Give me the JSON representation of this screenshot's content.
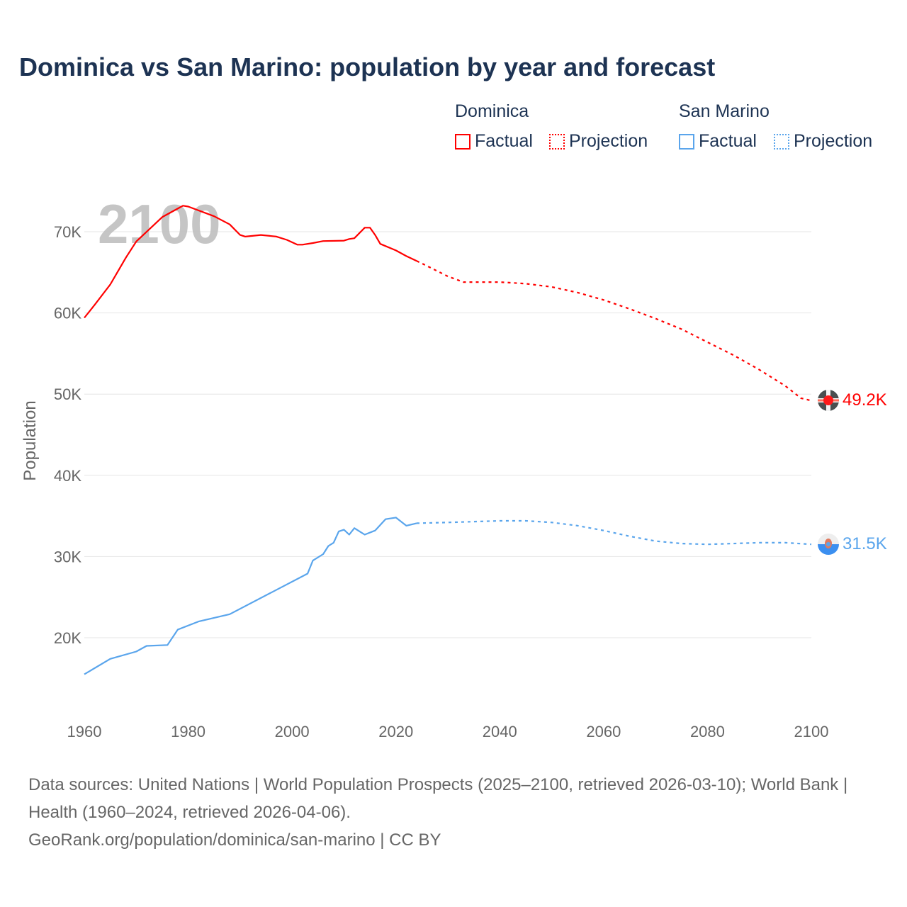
{
  "title": "Dominica vs San Marino: population by year and forecast",
  "legend": {
    "groups": [
      {
        "name": "Dominica",
        "factual": "Factual",
        "projection": "Projection",
        "color": "#ff0000"
      },
      {
        "name": "San Marino",
        "factual": "Factual",
        "projection": "Projection",
        "color": "#5aa5ec"
      }
    ]
  },
  "year_watermark": "2100",
  "end_labels": {
    "dominica": "49.2K",
    "san_marino": "31.5K"
  },
  "footer": {
    "sources": "Data sources: United Nations | World Population Prospects (2025–2100, retrieved 2026-03-10); World Bank | Health (1960–2024, retrieved 2026-04-06).",
    "credit": "GeoRank.org/population/dominica/san-marino | CC BY"
  },
  "chart_data": {
    "type": "line",
    "title": "Dominica vs San Marino: population by year and forecast",
    "xlabel": "",
    "ylabel": "Population",
    "xlim": [
      1960,
      2100
    ],
    "ylim": [
      10400,
      73500
    ],
    "x_ticks": [
      1960,
      1980,
      2000,
      2020,
      2040,
      2060,
      2080,
      2100
    ],
    "x_tick_labels": [
      "1960",
      "1980",
      "2000",
      "2020",
      "2040",
      "2060",
      "2080",
      "2100"
    ],
    "y_ticks": [
      20000,
      30000,
      40000,
      50000,
      60000,
      70000
    ],
    "y_tick_labels": [
      "20K",
      "30K",
      "40K",
      "50K",
      "60K",
      "70K"
    ],
    "grid": true,
    "legend_position": "top-right",
    "series": [
      {
        "name": "Dominica Factual",
        "color": "#ff0000",
        "style": "solid",
        "x": [
          1960,
          1962,
          1965,
          1968,
          1970,
          1975,
          1979,
          1980,
          1985,
          1988,
          1990,
          1991,
          1994,
          1997,
          1999,
          2001,
          2002,
          2004,
          2006,
          2010,
          2011,
          2012,
          2014,
          2015,
          2016,
          2017,
          2020,
          2022,
          2024
        ],
        "y": [
          59400,
          61000,
          63500,
          66800,
          68800,
          71800,
          73200,
          73100,
          71900,
          70900,
          69600,
          69400,
          69600,
          69400,
          69000,
          68400,
          68400,
          68600,
          68850,
          68900,
          69100,
          69200,
          70500,
          70500,
          69600,
          68500,
          67700,
          67000,
          66400
        ]
      },
      {
        "name": "Dominica Projection",
        "color": "#ff0000",
        "style": "dotted",
        "x": [
          2024,
          2025,
          2030,
          2033,
          2040,
          2045,
          2050,
          2055,
          2060,
          2065,
          2070,
          2075,
          2080,
          2085,
          2090,
          2095,
          2098,
          2100
        ],
        "y": [
          66400,
          66100,
          64500,
          63800,
          63800,
          63600,
          63200,
          62500,
          61600,
          60500,
          59300,
          58000,
          56400,
          54800,
          53000,
          51000,
          49500,
          49200
        ]
      },
      {
        "name": "San Marino Factual",
        "color": "#5aa5ec",
        "style": "solid",
        "x": [
          1960,
          1965,
          1970,
          1972,
          1976,
          1978,
          1982,
          1988,
          2003,
          2004,
          2006,
          2007,
          2008,
          2009,
          2010,
          2011,
          2012,
          2014,
          2016,
          2018,
          2020,
          2022,
          2024
        ],
        "y": [
          15500,
          17400,
          18300,
          19000,
          19100,
          21000,
          22000,
          22900,
          27900,
          29500,
          30300,
          31300,
          31700,
          33100,
          33300,
          32700,
          33500,
          32700,
          33200,
          34600,
          34800,
          33800,
          34100
        ]
      },
      {
        "name": "San Marino Projection",
        "color": "#5aa5ec",
        "style": "dotted",
        "x": [
          2024,
          2030,
          2040,
          2045,
          2050,
          2055,
          2060,
          2065,
          2070,
          2075,
          2080,
          2090,
          2095,
          2100
        ],
        "y": [
          34100,
          34200,
          34400,
          34400,
          34200,
          33800,
          33200,
          32500,
          31900,
          31600,
          31500,
          31700,
          31700,
          31500
        ]
      }
    ]
  }
}
